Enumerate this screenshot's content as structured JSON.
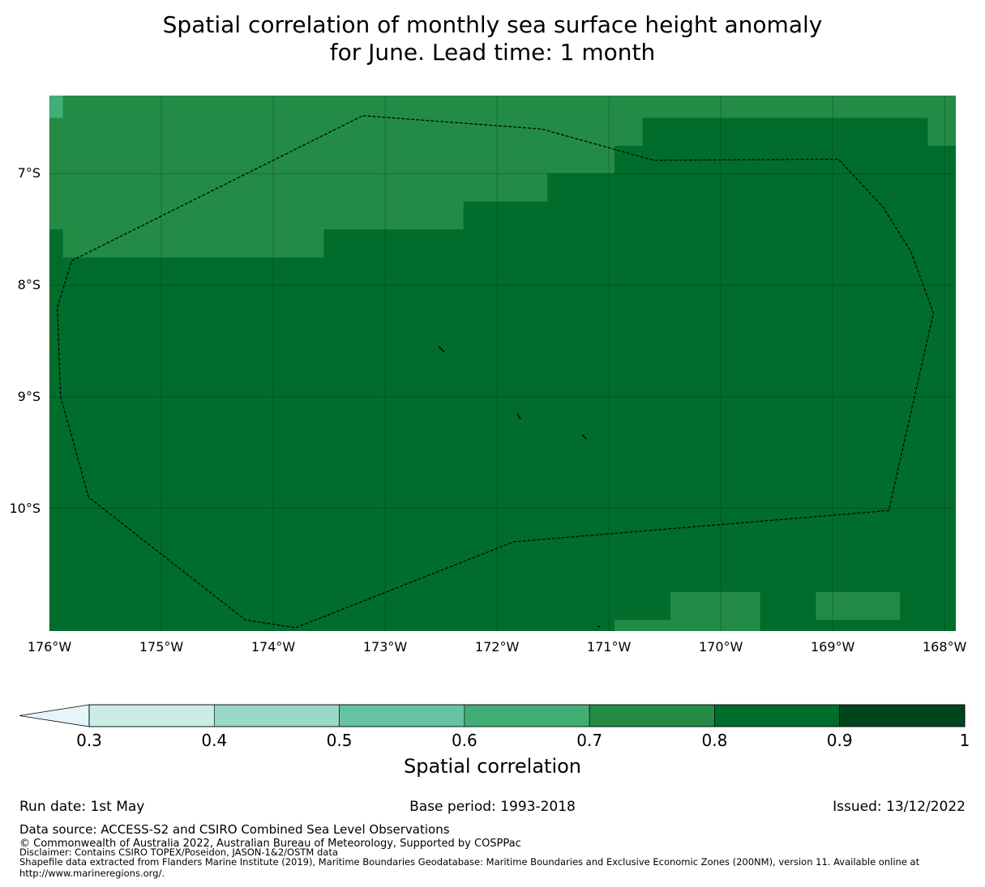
{
  "title": {
    "line1": "Spatial correlation of monthly sea surface height anomaly",
    "line2": "for June. Lead time: 1 month"
  },
  "map": {
    "lon_range": [
      -176,
      -167.9
    ],
    "lat_range": [
      -11.1,
      -6.3
    ],
    "lat_ticks": [
      {
        "value": -7,
        "label": "7°S"
      },
      {
        "value": -8,
        "label": "8°S"
      },
      {
        "value": -9,
        "label": "9°S"
      },
      {
        "value": -10,
        "label": "10°S"
      }
    ],
    "lon_ticks": [
      {
        "value": -176,
        "label": "176°W"
      },
      {
        "value": -175,
        "label": "175°W"
      },
      {
        "value": -174,
        "label": "174°W"
      },
      {
        "value": -173,
        "label": "173°W"
      },
      {
        "value": -172,
        "label": "172°W"
      },
      {
        "value": -171,
        "label": "171°W"
      },
      {
        "value": -170,
        "label": "170°W"
      },
      {
        "value": -169,
        "label": "169°W"
      },
      {
        "value": -168,
        "label": "168°W"
      }
    ],
    "background_correlation_bin": "0.8-0.9",
    "regions": [
      {
        "bin": "0.7-0.8",
        "polygon": [
          [
            -176,
            -6.3
          ],
          [
            -167.9,
            -6.3
          ],
          [
            -167.9,
            -6.75
          ],
          [
            -168.15,
            -6.75
          ],
          [
            -168.15,
            -6.5
          ],
          [
            -170.7,
            -6.5
          ],
          [
            -170.7,
            -6.75
          ],
          [
            -170.95,
            -6.75
          ],
          [
            -170.95,
            -7
          ],
          [
            -171.55,
            -7
          ],
          [
            -171.55,
            -7.25
          ],
          [
            -172.3,
            -7.25
          ],
          [
            -172.3,
            -7.5
          ],
          [
            -173.55,
            -7.5
          ],
          [
            -173.55,
            -7.75
          ],
          [
            -175.88,
            -7.75
          ],
          [
            -175.88,
            -7.5
          ],
          [
            -176,
            -7.5
          ]
        ]
      },
      {
        "bin": "0.6-0.7",
        "polygon": [
          [
            -176,
            -6.3
          ],
          [
            -175.88,
            -6.3
          ],
          [
            -175.88,
            -6.5
          ],
          [
            -176,
            -6.5
          ]
        ]
      },
      {
        "bin": "0.7-0.8",
        "polygon": [
          [
            -170.45,
            -10.75
          ],
          [
            -169.65,
            -10.75
          ],
          [
            -169.65,
            -11.1
          ],
          [
            -170.95,
            -11.1
          ],
          [
            -170.95,
            -11.0
          ],
          [
            -170.45,
            -11.0
          ]
        ]
      },
      {
        "bin": "0.7-0.8",
        "polygon": [
          [
            -169.15,
            -10.75
          ],
          [
            -168.4,
            -10.75
          ],
          [
            -168.4,
            -11.0
          ],
          [
            -169.15,
            -11.0
          ]
        ]
      }
    ],
    "eez_boundary": [
      [
        -173.2,
        -6.48
      ],
      [
        -171.6,
        -6.6
      ],
      [
        -170.6,
        -6.88
      ],
      [
        -168.95,
        -6.87
      ],
      [
        -168.55,
        -7.3
      ],
      [
        -168.3,
        -7.7
      ],
      [
        -168.1,
        -8.25
      ],
      [
        -168.5,
        -10.02
      ],
      [
        -171.85,
        -10.3
      ],
      [
        -173.8,
        -11.07
      ],
      [
        -174.25,
        -11.0
      ],
      [
        -175.65,
        -9.9
      ],
      [
        -175.9,
        -9.0
      ],
      [
        -175.93,
        -8.2
      ],
      [
        -175.8,
        -7.78
      ],
      [
        -173.2,
        -6.48
      ]
    ],
    "islands": [
      [
        [
          -172.52,
          -8.55
        ],
        [
          -172.47,
          -8.6
        ]
      ],
      [
        [
          -171.82,
          -9.15
        ],
        [
          -171.79,
          -9.2
        ]
      ],
      [
        [
          -171.24,
          -9.34
        ],
        [
          -171.2,
          -9.38
        ]
      ],
      [
        [
          -171.1,
          -11.06
        ],
        [
          -171.08,
          -11.06
        ]
      ]
    ]
  },
  "colorbar": {
    "label": "Spatial correlation",
    "bins": [
      {
        "range": "0.3-0.4",
        "color": "#ccece6"
      },
      {
        "range": "0.4-0.5",
        "color": "#99d8c9"
      },
      {
        "range": "0.5-0.6",
        "color": "#66c2a4"
      },
      {
        "range": "0.6-0.7",
        "color": "#41ae76"
      },
      {
        "range": "0.7-0.8",
        "color": "#238b45"
      },
      {
        "range": "0.8-0.9",
        "color": "#006d2c"
      },
      {
        "range": "0.9-1",
        "color": "#00441b"
      }
    ],
    "under_color": "#e5f5f9",
    "ticks": [
      "0.3",
      "0.4",
      "0.5",
      "0.6",
      "0.7",
      "0.8",
      "0.9",
      "1"
    ]
  },
  "footer": {
    "run_date": "Run date: 1st May",
    "base_period": "Base period: 1993-2018",
    "issued": "Issued: 13/12/2022",
    "data_source": "Data source: ACCESS-S2 and CSIRO Combined Sea Level Observations",
    "copyright": "© Commonwealth of Australia 2022, Australian Bureau of Meteorology, Supported by COSPPac",
    "disclaimer": "Disclaimer: Contains CSIRO TOPEX/Poseidon, JASON-1&2/OSTM data",
    "shapefile_line1": "Shapefile data extracted from Flanders Marine Institute (2019), Maritime Boundaries Geodatabase: Maritime Boundaries and Exclusive Economic Zones (200NM), version 11. Available online at",
    "shapefile_line2": "http://www.marineregions.org/."
  }
}
